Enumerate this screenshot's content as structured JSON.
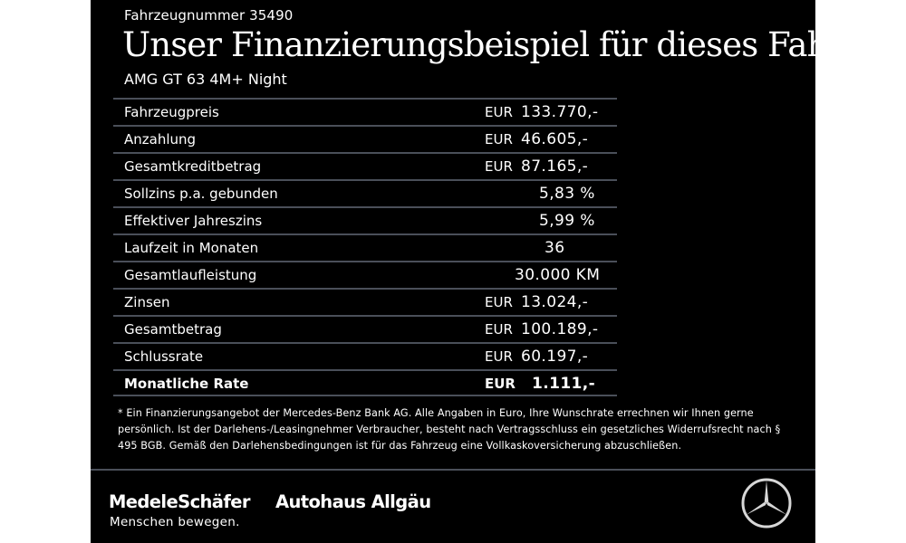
{
  "header": {
    "vehicle_number": "Fahrzeugnummer 35490",
    "headline": "Unser Finanzierungsbeispiel für dieses Fahrzeug.*",
    "model": "AMG GT 63 4M+ Night"
  },
  "finance_table": {
    "rows": [
      {
        "label": "Fahrzeugpreis",
        "currency": "EUR",
        "value": "133.770,-"
      },
      {
        "label": "Anzahlung",
        "currency": "EUR",
        "value": "46.605,-"
      },
      {
        "label": "Gesamtkreditbetrag",
        "currency": "EUR",
        "value": "87.165,-"
      },
      {
        "label": "Sollzins p.a. gebunden",
        "currency": "",
        "value": "5,83 %"
      },
      {
        "label": "Effektiver Jahreszins",
        "currency": "",
        "value": "5,99 %"
      },
      {
        "label": "Laufzeit in Monaten",
        "currency": "",
        "value": "36"
      },
      {
        "label": "Gesamtlaufleistung",
        "currency": "",
        "value": "30.000 KM"
      },
      {
        "label": "Zinsen",
        "currency": "EUR",
        "value": "13.024,-"
      },
      {
        "label": "Gesamtbetrag",
        "currency": "EUR",
        "value": "100.189,-"
      },
      {
        "label": "Schlussrate",
        "currency": "EUR",
        "value": "60.197,-"
      },
      {
        "label": "Monatliche Rate",
        "currency": "EUR",
        "value": "1.111,-"
      }
    ]
  },
  "footnote": "* Ein Finanzierungsangebot der Mercedes-Benz Bank AG. Alle Angaben in Euro, Ihre Wunschrate errechnen wir Ihnen gerne persönlich. Ist der Darlehens-/Leasingnehmer Verbraucher, besteht nach Vertragsschluss ein gesetzliches Widerrufsrecht nach § 495 BGB. Gemäß den Darlehensbedingungen ist für das Fahrzeug eine Vollkaskoversicherung abzuschließen.",
  "footer": {
    "dealer_1_name": "MedeleSchäfer",
    "dealer_1_tagline": "Menschen bewegen.",
    "dealer_2_name": "Autohaus Allgäu",
    "logo_icon": "mercedes-star-icon"
  },
  "colors": {
    "background": "#000000",
    "text": "#ffffff",
    "rule": "#4a4f59",
    "page": "#ffffff"
  }
}
